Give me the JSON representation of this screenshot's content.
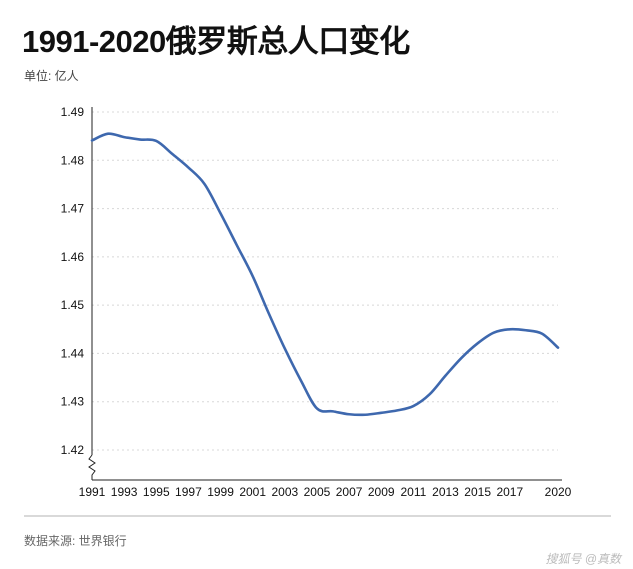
{
  "title": "1991-2020俄罗斯总人口变化",
  "unit_label": "单位: 亿人",
  "source_label": "数据来源: 世界银行",
  "watermark": "搜狐号 @真数",
  "colors": {
    "line": "#3e68ae",
    "grid": "#d8d8d8",
    "axis": "#222222",
    "text": "#111111"
  },
  "chart_data": {
    "type": "line",
    "title": "1991-2020俄罗斯总人口变化",
    "xlabel": "",
    "ylabel": "单位: 亿人",
    "x_ticks": [
      "1991",
      "1993",
      "1995",
      "1997",
      "1999",
      "2001",
      "2003",
      "2005",
      "2007",
      "2009",
      "2011",
      "2013",
      "2015",
      "2017",
      "2020"
    ],
    "y_ticks": [
      "1.42",
      "1.43",
      "1.44",
      "1.45",
      "1.46",
      "1.47",
      "1.48",
      "1.49"
    ],
    "ylim": [
      1.42,
      1.49
    ],
    "xlim": [
      1991,
      2020
    ],
    "grid": "horizontal-dashed",
    "series": [
      {
        "name": "",
        "x": [
          1991,
          1992,
          1993,
          1994,
          1995,
          1996,
          1997,
          1998,
          1999,
          2000,
          2001,
          2002,
          2003,
          2004,
          2005,
          2006,
          2007,
          2008,
          2009,
          2010,
          2011,
          2012,
          2013,
          2014,
          2015,
          2016,
          2017,
          2018,
          2019,
          2020
        ],
        "values": [
          1.4841,
          1.4855,
          1.4848,
          1.4843,
          1.484,
          1.4813,
          1.4785,
          1.4751,
          1.469,
          1.4625,
          1.456,
          1.4483,
          1.441,
          1.4344,
          1.4286,
          1.428,
          1.4274,
          1.4273,
          1.4277,
          1.4282,
          1.4291,
          1.4315,
          1.4354,
          1.4391,
          1.4421,
          1.4443,
          1.445,
          1.4448,
          1.4441,
          1.4412
        ]
      }
    ]
  }
}
